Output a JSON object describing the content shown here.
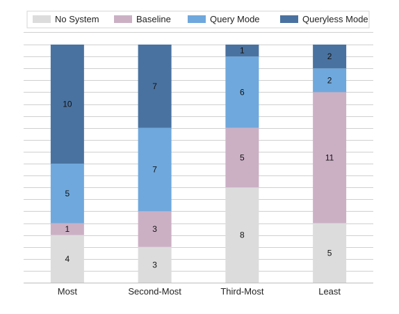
{
  "chart_data": {
    "type": "bar",
    "stacked": true,
    "categories": [
      "Most",
      "Second-Most",
      "Third-Most",
      "Least"
    ],
    "series": [
      {
        "name": "No System",
        "values": [
          4,
          3,
          8,
          5
        ],
        "color": "#dcdcdc"
      },
      {
        "name": "Baseline",
        "values": [
          1,
          3,
          5,
          11
        ],
        "color": "#cbb0c4"
      },
      {
        "name": "Query Mode",
        "values": [
          5,
          7,
          6,
          2
        ],
        "color": "#6fa8dc"
      },
      {
        "name": "Queryless Mode",
        "values": [
          10,
          7,
          1,
          2
        ],
        "color": "#4a72a0"
      }
    ],
    "ylim": [
      0,
      20
    ],
    "grid": true,
    "legend_position": "top",
    "title": "",
    "xlabel": "",
    "ylabel": ""
  }
}
